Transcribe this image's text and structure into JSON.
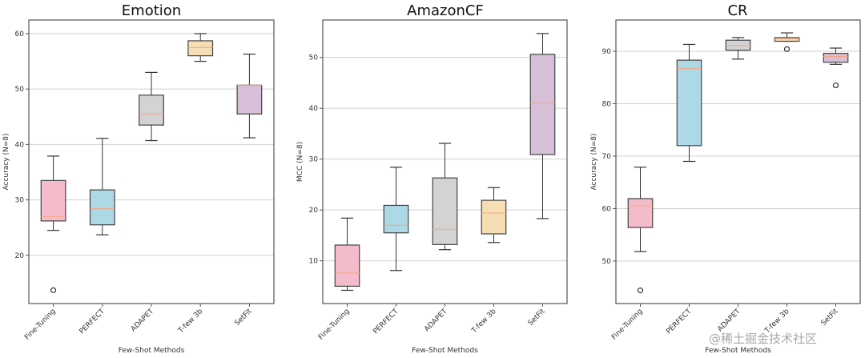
{
  "figure": {
    "watermark": "@稀土掘金技术社区"
  },
  "chart_data": [
    {
      "type": "box",
      "title": "Emotion",
      "xlabel": "Few-Shot Methods",
      "ylabel": "Accuracy (N=8)",
      "ylim": [
        11.3,
        62.45
      ],
      "yticks": [
        20,
        30,
        40,
        50,
        60
      ],
      "grid": "horizontal",
      "categories": [
        "Fine-Tuning",
        "PERFECT",
        "ADAPET",
        "T-few 3b",
        "SetFit"
      ],
      "colors": [
        "#f4bccb",
        "#add8e6",
        "#d3d3d3",
        "#f5deb3",
        "#d8bfd8"
      ],
      "boxes": [
        {
          "whisker_low": 24.5,
          "q1": 26.2,
          "median": 27.0,
          "q3": 33.5,
          "whisker_high": 37.9,
          "outliers": [
            13.7
          ]
        },
        {
          "whisker_low": 23.7,
          "q1": 25.5,
          "median": 28.4,
          "q3": 31.8,
          "whisker_high": 41.1,
          "outliers": []
        },
        {
          "whisker_low": 40.7,
          "q1": 43.5,
          "median": 45.5,
          "q3": 48.9,
          "whisker_high": 53.0,
          "outliers": []
        },
        {
          "whisker_low": 55.0,
          "q1": 56.0,
          "median": 57.5,
          "q3": 58.7,
          "whisker_high": 60.0,
          "outliers": []
        },
        {
          "whisker_low": 41.2,
          "q1": 45.5,
          "median": 50.7,
          "q3": 50.7,
          "whisker_high": 56.3,
          "outliers": []
        }
      ]
    },
    {
      "type": "box",
      "title": "AmazonCF",
      "xlabel": "Few-Shot Methods",
      "ylabel": "MCC (N=8)",
      "ylim": [
        1.6,
        57.35
      ],
      "yticks": [
        10,
        20,
        30,
        40,
        50
      ],
      "grid": "horizontal",
      "categories": [
        "Fine-Tuning",
        "PERFECT",
        "ADAPET",
        "T-few 3b",
        "SetFit"
      ],
      "colors": [
        "#f4bccb",
        "#add8e6",
        "#d3d3d3",
        "#f5deb3",
        "#d8bfd8"
      ],
      "boxes": [
        {
          "whisker_low": 4.2,
          "q1": 5.0,
          "median": 7.6,
          "q3": 13.1,
          "whisker_high": 18.4,
          "outliers": []
        },
        {
          "whisker_low": 8.1,
          "q1": 15.5,
          "median": 17.0,
          "q3": 20.9,
          "whisker_high": 28.4,
          "outliers": []
        },
        {
          "whisker_low": 12.2,
          "q1": 13.2,
          "median": 16.2,
          "q3": 26.3,
          "whisker_high": 33.1,
          "outliers": []
        },
        {
          "whisker_low": 13.6,
          "q1": 15.3,
          "median": 19.4,
          "q3": 21.9,
          "whisker_high": 24.4,
          "outliers": []
        },
        {
          "whisker_low": 18.3,
          "q1": 30.9,
          "median": 41.0,
          "q3": 50.6,
          "whisker_high": 54.7,
          "outliers": []
        }
      ]
    },
    {
      "type": "box",
      "title": "CR",
      "xlabel": "Few-Shot Methods",
      "ylabel": "Accuracy (N=8)",
      "ylim": [
        41.9,
        95.95
      ],
      "yticks": [
        50,
        60,
        70,
        80,
        90
      ],
      "grid": "horizontal",
      "categories": [
        "Fine-Tuning",
        "PERFECT",
        "ADAPET",
        "T-few 3b",
        "SetFit"
      ],
      "colors": [
        "#f4bccb",
        "#add8e6",
        "#d3d3d3",
        "#f5deb3",
        "#d8bfd8"
      ],
      "boxes": [
        {
          "whisker_low": 51.8,
          "q1": 56.4,
          "median": 60.5,
          "q3": 61.9,
          "whisker_high": 67.9,
          "outliers": [
            44.4
          ]
        },
        {
          "whisker_low": 69.0,
          "q1": 72.0,
          "median": 86.7,
          "q3": 88.3,
          "whisker_high": 91.3,
          "outliers": []
        },
        {
          "whisker_low": 88.5,
          "q1": 90.2,
          "median": 91.1,
          "q3": 92.1,
          "whisker_high": 92.6,
          "outliers": []
        },
        {
          "whisker_low": 91.9,
          "q1": 91.9,
          "median": 92.4,
          "q3": 92.6,
          "whisker_high": 93.5,
          "outliers": [
            90.4
          ]
        },
        {
          "whisker_low": 87.5,
          "q1": 87.9,
          "median": 89.0,
          "q3": 89.6,
          "whisker_high": 90.6,
          "outliers": [
            83.5
          ]
        }
      ]
    }
  ],
  "style": {
    "median_color": "#f4a582",
    "grid_color": "#d0d0d0",
    "frame_color": "#555555",
    "whisker_color": "#333333"
  }
}
